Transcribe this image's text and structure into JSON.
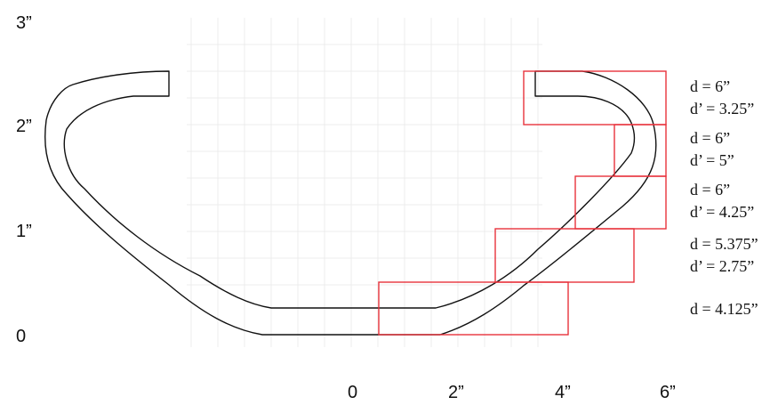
{
  "y_axis_labels": [
    "3”",
    "2”",
    "1”",
    "0"
  ],
  "x_axis_labels": [
    "0",
    "2”",
    "4”",
    "6”"
  ],
  "annotations": [
    {
      "d": "d = 6”",
      "dp": "d’ = 3.25”"
    },
    {
      "d": "d = 6”",
      "dp": "d’ = 5”"
    },
    {
      "d": "d = 6”",
      "dp": "d’ = 4.25”"
    },
    {
      "d": "d = 5.375”",
      "dp": "d’ = 2.75”"
    },
    {
      "d": "d = 4.125”",
      "dp": ""
    }
  ],
  "colors": {
    "outline": "#111111",
    "boxes": "#e8323c",
    "grid": "#ececec"
  }
}
